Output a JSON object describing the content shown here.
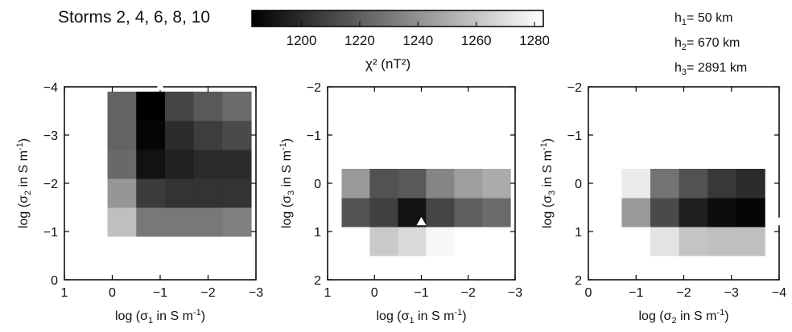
{
  "header": {
    "title": "Storms 2, 4, 6, 8, 10",
    "params": [
      "h₁= 50 km",
      "h₂= 670 km",
      "h₃= 2891 km"
    ],
    "colorbar_label": "χ² (nT²)",
    "colorbar_ticks": [
      "1200",
      "1220",
      "1240",
      "1260",
      "1280"
    ],
    "colorbar_range": [
      1183,
      1283
    ]
  },
  "chart_data": [
    {
      "type": "heatmap",
      "xlabel": "log (σ₁ in S m⁻¹)",
      "ylabel": "log (σ₂ in S m⁻¹)",
      "xlim": [
        1,
        -3
      ],
      "ylim": [
        0,
        -4
      ],
      "xticks": [
        1,
        0,
        -1,
        -2,
        -3
      ],
      "yticks": [
        0,
        -1,
        -2,
        -3,
        -4
      ],
      "x_cells": [
        0.4,
        -0.2,
        -0.8,
        -1.4,
        -2.0,
        -2.6
      ],
      "y_cells": [
        -1.2,
        -1.8,
        -2.4,
        -3.0,
        -3.6
      ],
      "cell_width": 0.6,
      "marker": {
        "x": -1.0,
        "y": -4.0
      },
      "values": [
        [
          1283,
          1258,
          1230,
          1230,
          1230,
          1233
        ],
        [
          1283,
          1242,
          1206,
          1203,
          1203,
          1203
        ],
        [
          1283,
          1224,
          1190,
          1196,
          1200,
          1200
        ],
        [
          1283,
          1222,
          1185,
          1200,
          1207,
          1212
        ],
        [
          1283,
          1222,
          1183,
          1210,
          1218,
          1225
        ]
      ]
    },
    {
      "type": "heatmap",
      "xlabel": "log (σ₁ in S m⁻¹)",
      "ylabel": "log (σ₃ in S m⁻¹)",
      "xlim": [
        1,
        -3
      ],
      "ylim": [
        2,
        -2
      ],
      "xticks": [
        1,
        0,
        -1,
        -2,
        -3
      ],
      "yticks": [
        2,
        1,
        0,
        -1,
        -2
      ],
      "x_cells": [
        0.4,
        -0.2,
        -0.8,
        -1.4,
        -2.0,
        -2.6
      ],
      "y_cells": [
        1.2,
        0.6,
        0.0
      ],
      "cell_width": 0.6,
      "marker": {
        "x": -1.0,
        "y": 0.8
      },
      "values": [
        [
          1283,
          1262,
          1268,
          1280,
          1283,
          1283
        ],
        [
          1215,
          1208,
          1190,
          1210,
          1220,
          1225
        ],
        [
          1243,
          1215,
          1218,
          1235,
          1245,
          1250
        ]
      ]
    },
    {
      "type": "heatmap",
      "xlabel": "log (σ₂ in S m⁻¹)",
      "ylabel": "log (σ₃ in S m⁻¹)",
      "xlim": [
        0,
        -4
      ],
      "ylim": [
        2,
        -2
      ],
      "xticks": [
        0,
        -1,
        -2,
        -3,
        -4
      ],
      "yticks": [
        2,
        1,
        0,
        -1,
        -2
      ],
      "x_cells": [
        -1.0,
        -1.6,
        -2.2,
        -2.8,
        -3.4
      ],
      "y_cells": [
        1.2,
        0.6,
        0.0
      ],
      "cell_width": 0.6,
      "marker": {
        "x": -4.0,
        "y": 0.8
      },
      "values": [
        [
          1283,
          1272,
          1260,
          1258,
          1258
        ],
        [
          1243,
          1212,
          1195,
          1188,
          1185
        ],
        [
          1275,
          1228,
          1215,
          1205,
          1200
        ]
      ]
    }
  ]
}
